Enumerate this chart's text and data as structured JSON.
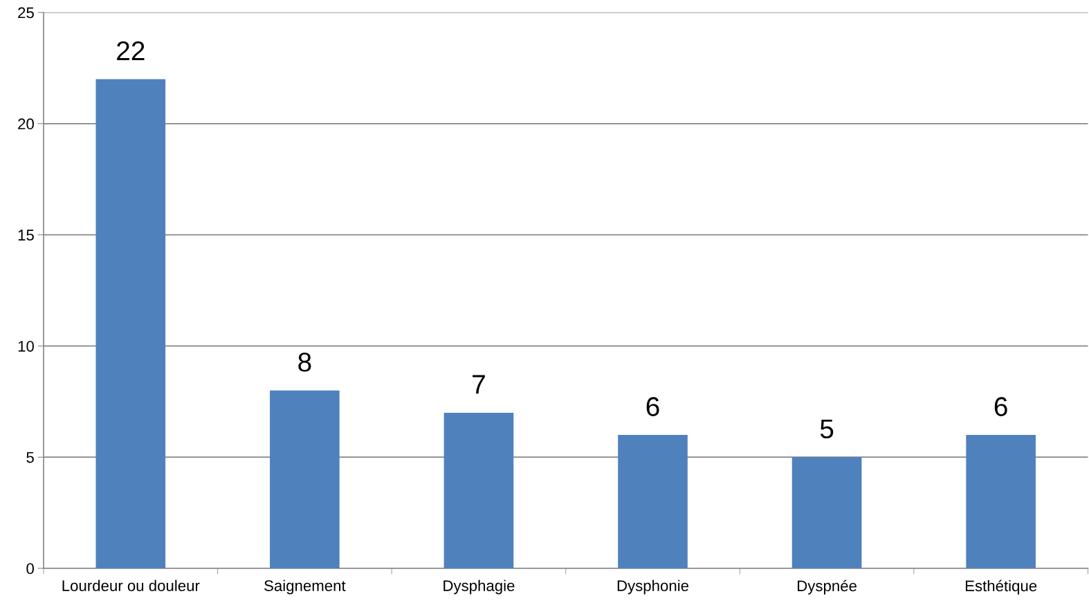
{
  "chart_data": {
    "type": "bar",
    "categories": [
      "Lourdeur ou douleur",
      "Saignement",
      "Dysphagie",
      "Dysphonie",
      "Dyspnée",
      "Esthétique"
    ],
    "values": [
      22,
      8,
      7,
      6,
      5,
      6
    ],
    "color": "#4f81bd",
    "ylim": [
      0,
      25
    ],
    "yticks": [
      0,
      5,
      10,
      15,
      20,
      25
    ],
    "grid": "y",
    "data_labels": true
  }
}
